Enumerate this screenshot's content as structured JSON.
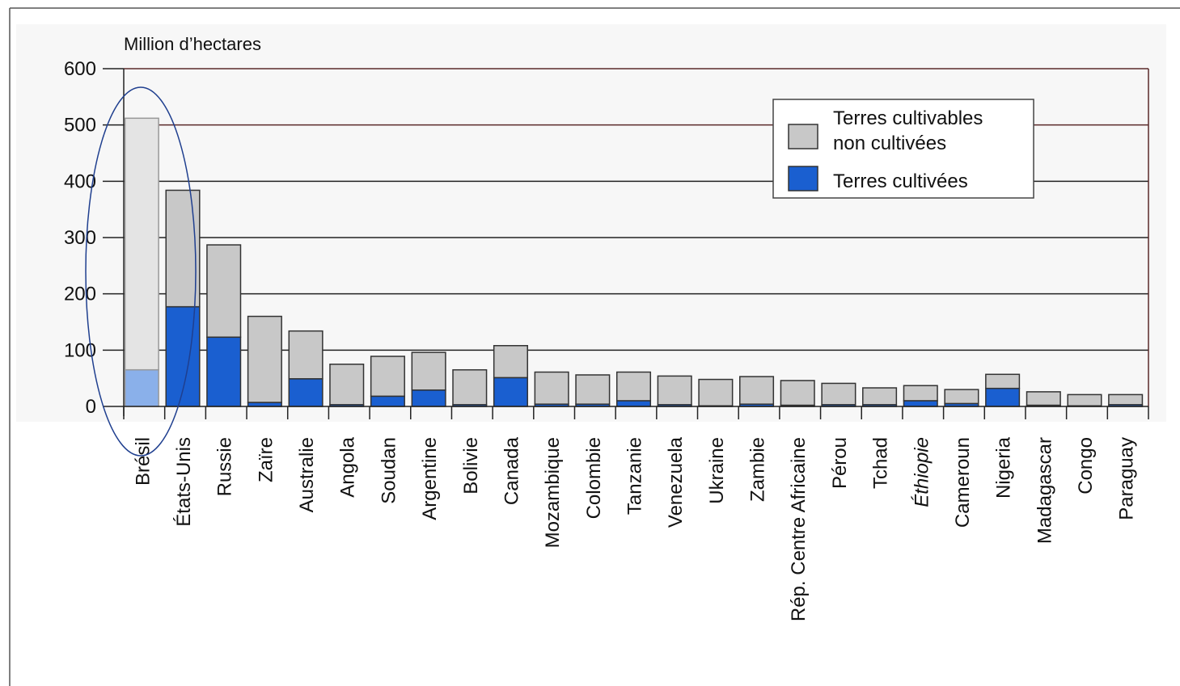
{
  "chart_data": {
    "type": "bar",
    "stacked": true,
    "ylabel": "Million d’hectares",
    "ylim": [
      0,
      600
    ],
    "yticks": [
      0,
      100,
      200,
      300,
      400,
      500,
      600
    ],
    "grid": true,
    "legend_position": "top-right",
    "categories": [
      "Brésil",
      "États-Unis",
      "Russie",
      "Zaïre",
      "Australie",
      "Angola",
      "Soudan",
      "Argentine",
      "Bolivie",
      "Canada",
      "Mozambique",
      "Colombie",
      "Tanzanie",
      "Venezuela",
      "Ukraine",
      "Zambie",
      "Rép. Centre Africaine",
      "Pérou",
      "Tchad",
      "Éthiopie",
      "Cameroun",
      "Nigeria",
      "Madagascar",
      "Congo",
      "Paraguay"
    ],
    "series": [
      {
        "name": "Terres cultivées",
        "color": "#1a5fd0",
        "values": [
          65,
          177,
          123,
          7,
          49,
          3,
          18,
          29,
          3,
          51,
          4,
          4,
          10,
          3,
          1,
          4,
          2,
          3,
          3,
          10,
          5,
          32,
          2,
          1,
          3
        ]
      },
      {
        "name": "Terres cultivables non cultivées",
        "color": "#c8c8c8",
        "values": [
          447,
          207,
          164,
          153,
          85,
          72,
          71,
          67,
          62,
          57,
          57,
          52,
          51,
          51,
          47,
          49,
          44,
          38,
          30,
          27,
          25,
          25,
          24,
          20,
          18
        ]
      }
    ],
    "legend": {
      "uncultivated_label_line1": "Terres cultivables",
      "uncultivated_label_line2": "non cultivées",
      "cultivated_label": "Terres cultivées"
    },
    "highlight": {
      "category": "Brésil",
      "shape": "ellipse",
      "color": "#1f3f8f"
    }
  }
}
